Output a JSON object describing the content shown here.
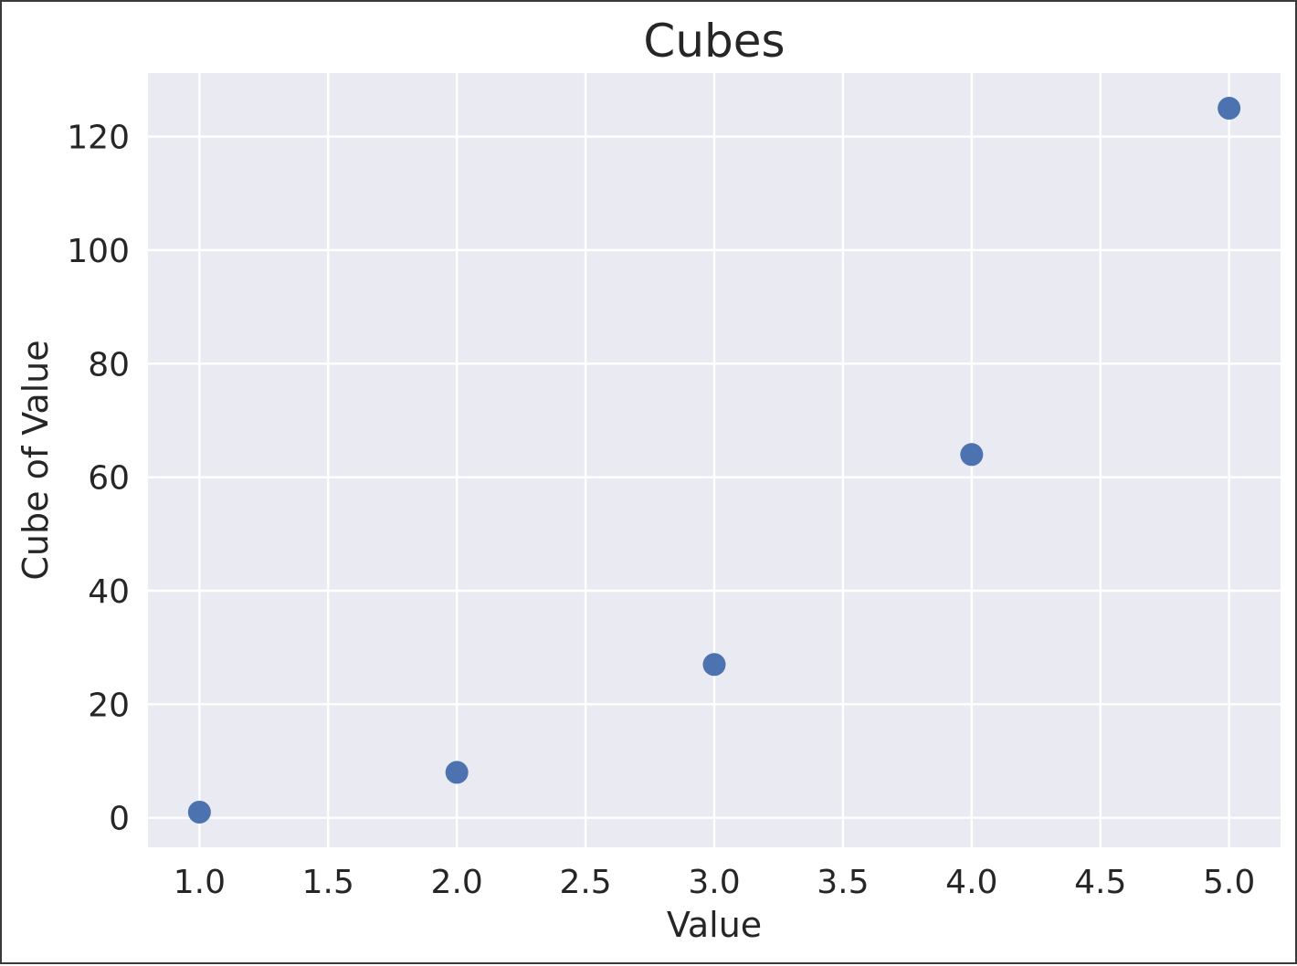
{
  "chart_data": {
    "type": "scatter",
    "title": "Cubes",
    "xlabel": "Value",
    "ylabel": "Cube of Value",
    "x": [
      1,
      2,
      3,
      4,
      5
    ],
    "y": [
      1,
      8,
      27,
      64,
      125
    ],
    "xlim": [
      0.8,
      5.2
    ],
    "ylim": [
      -5.2,
      131.2
    ],
    "xticks": [
      1.0,
      1.5,
      2.0,
      2.5,
      3.0,
      3.5,
      4.0,
      4.5,
      5.0
    ],
    "xtick_labels": [
      "1.0",
      "1.5",
      "2.0",
      "2.5",
      "3.0",
      "3.5",
      "4.0",
      "4.5",
      "5.0"
    ],
    "yticks": [
      0,
      20,
      40,
      60,
      80,
      100,
      120
    ],
    "ytick_labels": [
      "0",
      "20",
      "40",
      "60",
      "80",
      "100",
      "120"
    ],
    "grid": true,
    "colors": {
      "plot_background": "#eaeaf2",
      "grid": "#ffffff",
      "marker": "#4c72b0",
      "text": "#262626"
    }
  }
}
